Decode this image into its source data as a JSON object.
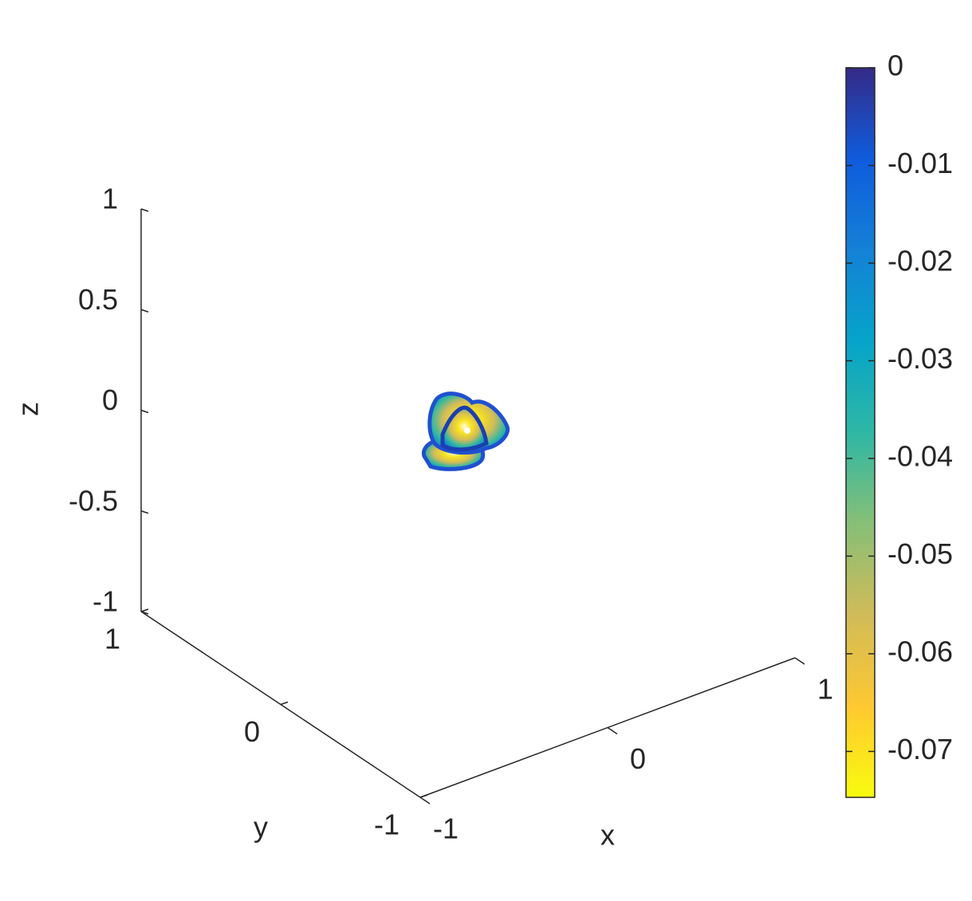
{
  "chart_data": {
    "type": "contour3",
    "xlabel": "x",
    "ylabel": "y",
    "zlabel": "z",
    "xlim": [
      -1,
      1
    ],
    "xticks": [
      -1,
      0,
      1
    ],
    "ylim": [
      -1,
      1
    ],
    "yticks": [
      -1,
      0,
      1
    ],
    "zlim": [
      -1,
      1
    ],
    "zticks": [
      -1,
      -0.5,
      0,
      0.5,
      1
    ],
    "colorbar": {
      "clim": [
        -0.0747,
        0
      ],
      "ticks": [
        0,
        -0.01,
        -0.02,
        -0.03,
        -0.04,
        -0.05,
        -0.06,
        -0.07
      ],
      "colormap": [
        "#352a87",
        "#0f5cdd",
        "#1481d6",
        "#06a4ca",
        "#2eb7a4",
        "#87bf77",
        "#d1bb59",
        "#fec832",
        "#f9fb0e"
      ]
    }
  }
}
